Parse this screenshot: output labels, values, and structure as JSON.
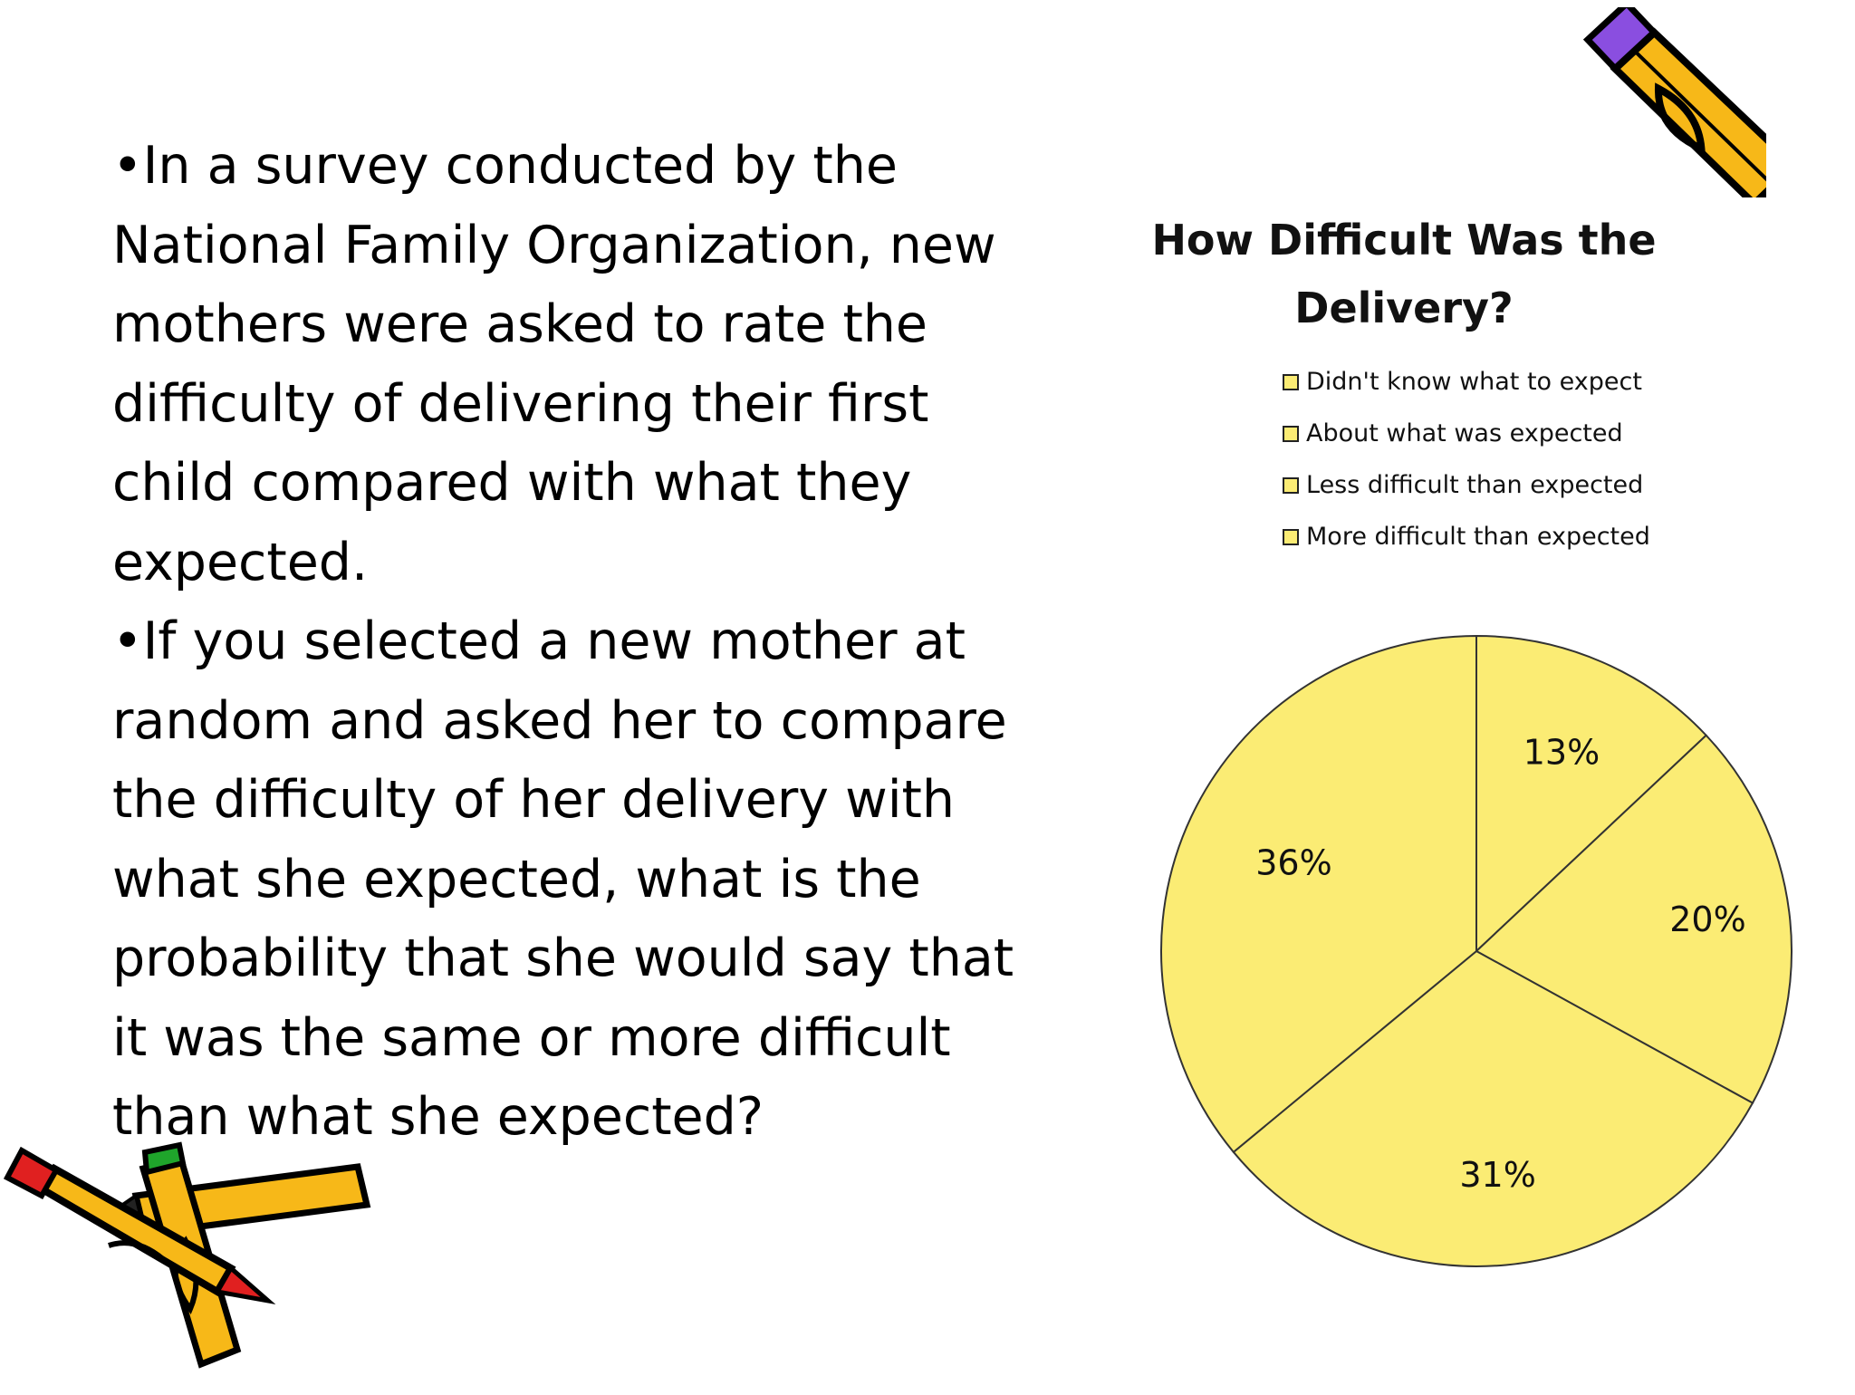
{
  "text": {
    "bullet1": "•In a survey conducted by the National Family Organization, new mothers were asked to rate the difficulty of delivering their first child compared with what they expected.",
    "bullet2": "•If you selected a new mother at random and asked her to compare the difficulty of her delivery with what she expected, what is the probability that she would say that it was the same or more difficult than what she expected?"
  },
  "colors": {
    "pie_fill": "#fbec74",
    "pie_stroke": "#333333",
    "pencil_yellow": "#f7b818",
    "pencil_purple": "#8a4ee0",
    "crayon_red": "#e02020",
    "crayon_green": "#1fa52b"
  },
  "clipart": [
    "pencil-icon",
    "crayons-icon"
  ],
  "chart_data": {
    "type": "pie",
    "title": "How Difficult Was the Delivery?",
    "categories": [
      "Didn't know what to expect",
      "About what was expected",
      "Less difficult than expected",
      "More difficult than expected"
    ],
    "legend_position": "top",
    "slices": [
      {
        "label": "13%",
        "value": 13
      },
      {
        "label": "20%",
        "value": 20
      },
      {
        "label": "31%",
        "value": 31
      },
      {
        "label": "36%",
        "value": 36
      }
    ]
  }
}
